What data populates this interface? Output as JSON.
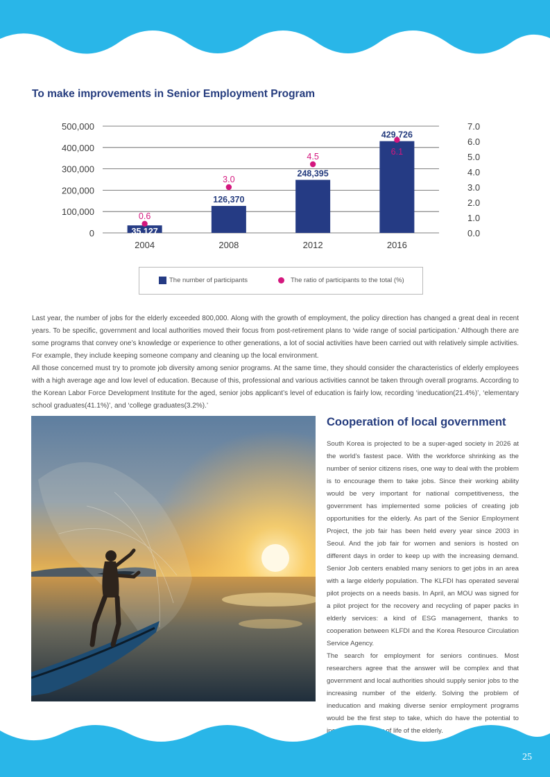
{
  "section_title": "To make improvements in Senior Employment Program",
  "chart_data": {
    "type": "bar",
    "categories": [
      "2004",
      "2008",
      "2012",
      "2016"
    ],
    "series": [
      {
        "name": "The number of participants",
        "type": "bar",
        "axis": "left",
        "values": [
          35127,
          126370,
          248395,
          429726
        ],
        "labels": [
          "35,127",
          "126,370",
          "248,395",
          "429,726"
        ]
      },
      {
        "name": "The ratio of participants to the total (%)",
        "type": "scatter",
        "axis": "right",
        "values": [
          0.6,
          3.0,
          4.5,
          6.1
        ],
        "labels": [
          "0.6",
          "3.0",
          "4.5",
          "6.1"
        ]
      }
    ],
    "left_axis": {
      "min": 0,
      "max": 500000,
      "ticks": [
        "0",
        "100,000",
        "200,000",
        "300,000",
        "400,000",
        "500,000"
      ]
    },
    "right_axis": {
      "min": 0,
      "max": 7,
      "ticks": [
        "0.0",
        "1.0",
        "2.0",
        "3.0",
        "4.0",
        "5.0",
        "6.0",
        "7.0"
      ]
    },
    "grid": true,
    "legend_position": "bottom",
    "colors": {
      "bar": "#253b84",
      "dot": "#d4177e",
      "grid": "#555555"
    }
  },
  "legend": {
    "bar_label": "The number of participants",
    "dot_label": "The ratio of participants to the total (%)"
  },
  "intro_paragraph_1": "Last year, the number of jobs for the elderly exceeded 800,000. Along with the growth of employment, the policy direction has changed a great deal in recent years. To be specific, government and local authorities moved their focus from post-retirement plans to ‘wide range of social participation.’ Although there are some programs that convey one’s knowledge or experience to other generations, a lot of social activities have been carried out with relatively simple activities. For example, they include keeping someone company and cleaning up the local environment.",
  "intro_paragraph_2": "All those concerned must try to promote job diversity among senior programs. At the same time, they should consider the characteristics of elderly employees with a high average age and low level of education. Because of this, professional and various activities cannot be taken through overall programs. According to the Korean Labor Force Development Institute for the aged, senior jobs applicant’s level of education is fairly low, recording ‘ineducation(21.4%)’, ‘elementary school graduates(41.1%)’, and ‘college graduates(3.2%).’",
  "subsection_title": "Cooperation of local government",
  "body_paragraph_1": "South Korea is projected to be a super-aged society in 2026 at the world’s fastest pace. With the workforce shrinking as the number of senior citizens rises, one way to deal with the problem is to encourage them to take jobs. Since their working ability would be very important for national competitiveness, the government has implemented some policies of creating job opportunities for the elderly. As part of the Senior Employment Project, the job fair has been held every year since 2003 in Seoul. And the job fair for women and seniors is hosted on different days in order to keep up with the increasing demand. Senior Job centers enabled many seniors to get jobs in an area with a large elderly population. The KLFDI has operated several pilot projects on a needs basis. In April, an MOU was signed for a pilot project for the recovery and recycling of paper packs in elderly services: a kind of ESG management, thanks to cooperation between KLFDI and the Korea Resource Circulation Service Agency.",
  "body_paragraph_2": "The search for employment for seniors continues. Most researchers agree that the answer will be complex and that government and local authorities should supply senior jobs to the increasing number of the elderly. Solving the problem of ineducation and making diverse senior employment programs would be the first step to take, which do have the potential to increase the quality of life of the elderly.",
  "page_number": "25",
  "theme": {
    "wave_color": "#29b6e8",
    "heading_color": "#243b7d"
  }
}
